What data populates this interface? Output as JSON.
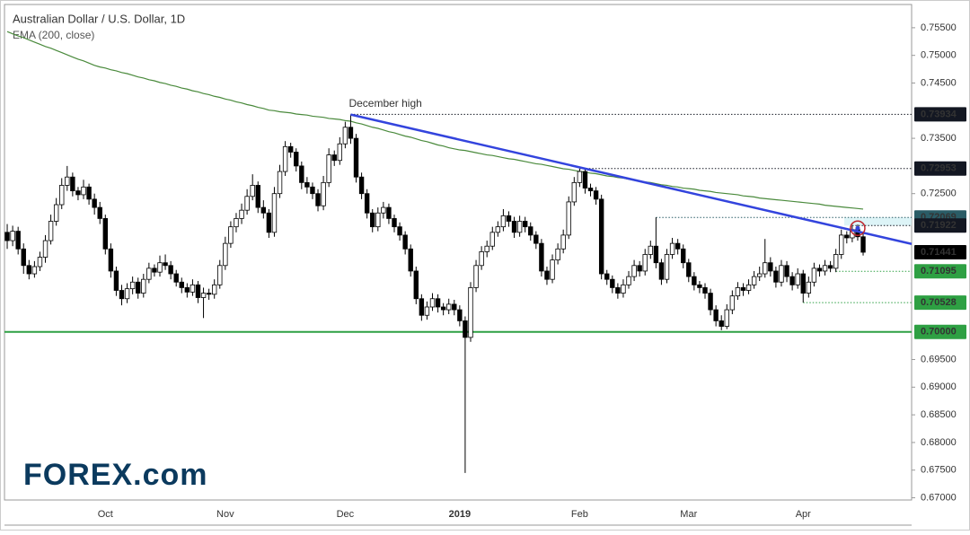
{
  "chart_data": {
    "type": "candlestick",
    "title": "Australian Dollar / U.S. Dollar, 1D",
    "subtitle": "EMA (200, close)",
    "annotation": "December high",
    "logo": "FOREX.com",
    "up_color": "#ffffff",
    "down_color": "#000000",
    "wick_color": "#000000",
    "ylim": [
      0.6696,
      0.7592
    ],
    "yticks": [
      {
        "value": 0.755,
        "label": "0.75500"
      },
      {
        "value": 0.75,
        "label": "0.75000"
      },
      {
        "value": 0.745,
        "label": "0.74500"
      },
      {
        "value": 0.735,
        "label": "0.73500"
      },
      {
        "value": 0.725,
        "label": "0.72500"
      },
      {
        "value": 0.695,
        "label": "0.69500"
      },
      {
        "value": 0.69,
        "label": "0.69000"
      },
      {
        "value": 0.685,
        "label": "0.68500"
      },
      {
        "value": 0.68,
        "label": "0.68000"
      },
      {
        "value": 0.675,
        "label": "0.67500"
      },
      {
        "value": 0.67,
        "label": "0.67000"
      }
    ],
    "categories": [
      null,
      null,
      null,
      null,
      null,
      null,
      null,
      null,
      null,
      null,
      null,
      null,
      null,
      null,
      null,
      null,
      null,
      null,
      "Oct",
      null,
      null,
      null,
      null,
      null,
      null,
      null,
      null,
      null,
      null,
      null,
      null,
      null,
      null,
      null,
      null,
      null,
      null,
      null,
      null,
      null,
      "Nov",
      null,
      null,
      null,
      null,
      null,
      null,
      null,
      null,
      null,
      null,
      null,
      null,
      null,
      null,
      null,
      null,
      null,
      null,
      null,
      null,
      null,
      "Dec",
      null,
      null,
      null,
      null,
      null,
      null,
      null,
      null,
      null,
      null,
      null,
      null,
      null,
      null,
      null,
      null,
      null,
      null,
      null,
      null,
      "2019",
      null,
      null,
      null,
      null,
      null,
      null,
      null,
      null,
      null,
      null,
      null,
      null,
      null,
      null,
      null,
      null,
      null,
      null,
      null,
      null,
      null,
      "Feb",
      null,
      null,
      null,
      null,
      null,
      null,
      null,
      null,
      null,
      null,
      null,
      null,
      null,
      null,
      null,
      null,
      null,
      null,
      null,
      "Mar",
      null,
      null,
      null,
      null,
      null,
      null,
      null,
      null,
      null,
      null,
      null,
      null,
      null,
      null,
      null,
      null,
      null,
      null,
      null,
      null,
      "Apr",
      null,
      null,
      null,
      null,
      null,
      null,
      null,
      null,
      null,
      null,
      null
    ],
    "candles": [
      [
        0.718,
        0.7195,
        0.715,
        0.7165
      ],
      [
        0.7165,
        0.7192,
        0.7155,
        0.7182
      ],
      [
        0.7182,
        0.719,
        0.714,
        0.715
      ],
      [
        0.715,
        0.716,
        0.7105,
        0.712
      ],
      [
        0.712,
        0.713,
        0.7095,
        0.7105
      ],
      [
        0.7105,
        0.7128,
        0.7098,
        0.7118
      ],
      [
        0.7118,
        0.7145,
        0.711,
        0.7135
      ],
      [
        0.7135,
        0.7175,
        0.7125,
        0.7165
      ],
      [
        0.7165,
        0.7212,
        0.7158,
        0.72
      ],
      [
        0.72,
        0.7242,
        0.7192,
        0.723
      ],
      [
        0.723,
        0.7278,
        0.7222,
        0.7265
      ],
      [
        0.7265,
        0.73,
        0.7255,
        0.728
      ],
      [
        0.728,
        0.7288,
        0.7245,
        0.7255
      ],
      [
        0.7255,
        0.7262,
        0.7238,
        0.7248
      ],
      [
        0.7248,
        0.7275,
        0.724,
        0.7262
      ],
      [
        0.7262,
        0.7268,
        0.723,
        0.724
      ],
      [
        0.724,
        0.725,
        0.7212,
        0.7225
      ],
      [
        0.7225,
        0.7235,
        0.7195,
        0.7205
      ],
      [
        0.7205,
        0.7212,
        0.714,
        0.715
      ],
      [
        0.715,
        0.716,
        0.7098,
        0.711
      ],
      [
        0.711,
        0.7118,
        0.7065,
        0.7075
      ],
      [
        0.7075,
        0.7085,
        0.7048,
        0.706
      ],
      [
        0.706,
        0.7088,
        0.7052,
        0.7078
      ],
      [
        0.7078,
        0.71,
        0.7068,
        0.709
      ],
      [
        0.709,
        0.7098,
        0.706,
        0.707
      ],
      [
        0.707,
        0.7105,
        0.7062,
        0.7095
      ],
      [
        0.7095,
        0.7125,
        0.7088,
        0.7115
      ],
      [
        0.7115,
        0.7122,
        0.71,
        0.7108
      ],
      [
        0.7108,
        0.7138,
        0.71,
        0.7125
      ],
      [
        0.7125,
        0.714,
        0.7112,
        0.712
      ],
      [
        0.712,
        0.7128,
        0.7095,
        0.7105
      ],
      [
        0.7105,
        0.7112,
        0.7082,
        0.709
      ],
      [
        0.709,
        0.7098,
        0.707,
        0.708
      ],
      [
        0.708,
        0.7088,
        0.7062,
        0.7072
      ],
      [
        0.7072,
        0.7095,
        0.7065,
        0.7085
      ],
      [
        0.7085,
        0.7092,
        0.7052,
        0.7062
      ],
      [
        0.7062,
        0.708,
        0.7025,
        0.707
      ],
      [
        0.707,
        0.7078,
        0.7058,
        0.7068
      ],
      [
        0.7068,
        0.7095,
        0.706,
        0.7085
      ],
      [
        0.7085,
        0.713,
        0.7078,
        0.712
      ],
      [
        0.712,
        0.7172,
        0.7112,
        0.716
      ],
      [
        0.716,
        0.72,
        0.7152,
        0.719
      ],
      [
        0.719,
        0.7215,
        0.718,
        0.7205
      ],
      [
        0.7205,
        0.7232,
        0.7195,
        0.722
      ],
      [
        0.722,
        0.7258,
        0.7212,
        0.7245
      ],
      [
        0.7245,
        0.7285,
        0.7238,
        0.7265
      ],
      [
        0.7265,
        0.7272,
        0.7215,
        0.7225
      ],
      [
        0.7225,
        0.7238,
        0.7205,
        0.7215
      ],
      [
        0.7215,
        0.7222,
        0.717,
        0.718
      ],
      [
        0.718,
        0.7262,
        0.7172,
        0.725
      ],
      [
        0.725,
        0.7302,
        0.7242,
        0.729
      ],
      [
        0.729,
        0.7345,
        0.7282,
        0.7335
      ],
      [
        0.7335,
        0.7342,
        0.7315,
        0.7325
      ],
      [
        0.7325,
        0.7332,
        0.729,
        0.73
      ],
      [
        0.73,
        0.7308,
        0.7258,
        0.727
      ],
      [
        0.727,
        0.728,
        0.725,
        0.7262
      ],
      [
        0.7262,
        0.727,
        0.724,
        0.725
      ],
      [
        0.725,
        0.7258,
        0.7218,
        0.7228
      ],
      [
        0.7228,
        0.7282,
        0.722,
        0.727
      ],
      [
        0.727,
        0.7332,
        0.7262,
        0.732
      ],
      [
        0.732,
        0.7328,
        0.73,
        0.731
      ],
      [
        0.731,
        0.7352,
        0.7302,
        0.734
      ],
      [
        0.734,
        0.738,
        0.7332,
        0.737
      ],
      [
        0.737,
        0.7393,
        0.734,
        0.735
      ],
      [
        0.735,
        0.7358,
        0.727,
        0.728
      ],
      [
        0.728,
        0.7288,
        0.724,
        0.725
      ],
      [
        0.725,
        0.7258,
        0.7205,
        0.7215
      ],
      [
        0.7215,
        0.7222,
        0.718,
        0.719
      ],
      [
        0.719,
        0.7225,
        0.7182,
        0.7215
      ],
      [
        0.7215,
        0.7235,
        0.7205,
        0.7225
      ],
      [
        0.7225,
        0.7232,
        0.7195,
        0.7205
      ],
      [
        0.7205,
        0.7212,
        0.718,
        0.719
      ],
      [
        0.719,
        0.7198,
        0.7165,
        0.7175
      ],
      [
        0.7175,
        0.7182,
        0.714,
        0.715
      ],
      [
        0.715,
        0.7158,
        0.71,
        0.711
      ],
      [
        0.711,
        0.7118,
        0.705,
        0.706
      ],
      [
        0.706,
        0.7068,
        0.702,
        0.703
      ],
      [
        0.703,
        0.7055,
        0.7022,
        0.7045
      ],
      [
        0.7045,
        0.707,
        0.7038,
        0.706
      ],
      [
        0.706,
        0.7068,
        0.7035,
        0.7045
      ],
      [
        0.7045,
        0.7052,
        0.703,
        0.704
      ],
      [
        0.704,
        0.706,
        0.7032,
        0.705
      ],
      [
        0.705,
        0.7058,
        0.703,
        0.704
      ],
      [
        0.704,
        0.7048,
        0.701,
        0.702
      ],
      [
        0.702,
        0.7028,
        0.6745,
        0.699
      ],
      [
        0.699,
        0.709,
        0.6982,
        0.708
      ],
      [
        0.708,
        0.713,
        0.7072,
        0.712
      ],
      [
        0.712,
        0.7155,
        0.7112,
        0.7145
      ],
      [
        0.7145,
        0.7165,
        0.7135,
        0.7155
      ],
      [
        0.7155,
        0.719,
        0.7148,
        0.718
      ],
      [
        0.718,
        0.72,
        0.7172,
        0.719
      ],
      [
        0.719,
        0.7222,
        0.7182,
        0.721
      ],
      [
        0.721,
        0.7218,
        0.719,
        0.72
      ],
      [
        0.72,
        0.7208,
        0.717,
        0.718
      ],
      [
        0.718,
        0.721,
        0.7172,
        0.72
      ],
      [
        0.72,
        0.7208,
        0.718,
        0.719
      ],
      [
        0.719,
        0.7198,
        0.7165,
        0.7175
      ],
      [
        0.7175,
        0.7182,
        0.715,
        0.716
      ],
      [
        0.716,
        0.7168,
        0.71,
        0.711
      ],
      [
        0.711,
        0.7118,
        0.7085,
        0.7095
      ],
      [
        0.7095,
        0.714,
        0.7088,
        0.713
      ],
      [
        0.713,
        0.716,
        0.7122,
        0.715
      ],
      [
        0.715,
        0.7185,
        0.7142,
        0.7175
      ],
      [
        0.7175,
        0.7245,
        0.7168,
        0.7235
      ],
      [
        0.7235,
        0.728,
        0.7228,
        0.727
      ],
      [
        0.727,
        0.7295,
        0.7262,
        0.729
      ],
      [
        0.729,
        0.7295,
        0.725,
        0.726
      ],
      [
        0.726,
        0.7268,
        0.7245,
        0.7255
      ],
      [
        0.7255,
        0.7262,
        0.723,
        0.724
      ],
      [
        0.724,
        0.7248,
        0.7095,
        0.7105
      ],
      [
        0.7105,
        0.7112,
        0.7085,
        0.7095
      ],
      [
        0.7095,
        0.7102,
        0.707,
        0.708
      ],
      [
        0.708,
        0.7088,
        0.706,
        0.707
      ],
      [
        0.707,
        0.7095,
        0.7062,
        0.7085
      ],
      [
        0.7085,
        0.711,
        0.7078,
        0.71
      ],
      [
        0.71,
        0.713,
        0.7092,
        0.712
      ],
      [
        0.712,
        0.7128,
        0.71,
        0.711
      ],
      [
        0.711,
        0.715,
        0.7102,
        0.714
      ],
      [
        0.714,
        0.7165,
        0.7132,
        0.7155
      ],
      [
        0.7155,
        0.7207,
        0.7115,
        0.7125
      ],
      [
        0.7125,
        0.7132,
        0.7085,
        0.7095
      ],
      [
        0.7095,
        0.715,
        0.7088,
        0.714
      ],
      [
        0.714,
        0.717,
        0.7132,
        0.716
      ],
      [
        0.716,
        0.7168,
        0.714,
        0.715
      ],
      [
        0.715,
        0.7158,
        0.7115,
        0.7125
      ],
      [
        0.7125,
        0.7132,
        0.709,
        0.71
      ],
      [
        0.71,
        0.7108,
        0.7075,
        0.7085
      ],
      [
        0.7085,
        0.7092,
        0.707,
        0.708
      ],
      [
        0.708,
        0.7088,
        0.706,
        0.707
      ],
      [
        0.707,
        0.7078,
        0.703,
        0.704
      ],
      [
        0.704,
        0.7048,
        0.701,
        0.702
      ],
      [
        0.702,
        0.703,
        0.7003,
        0.701
      ],
      [
        0.701,
        0.705,
        0.7005,
        0.704
      ],
      [
        0.704,
        0.7075,
        0.7032,
        0.7065
      ],
      [
        0.7065,
        0.709,
        0.7058,
        0.708
      ],
      [
        0.708,
        0.7088,
        0.7065,
        0.7075
      ],
      [
        0.7075,
        0.7095,
        0.7068,
        0.7085
      ],
      [
        0.7085,
        0.711,
        0.7078,
        0.71
      ],
      [
        0.71,
        0.7118,
        0.7092,
        0.7105
      ],
      [
        0.7105,
        0.7168,
        0.7098,
        0.7125
      ],
      [
        0.7125,
        0.7135,
        0.71,
        0.711
      ],
      [
        0.711,
        0.7118,
        0.708,
        0.709
      ],
      [
        0.709,
        0.713,
        0.7082,
        0.712
      ],
      [
        0.712,
        0.7128,
        0.709,
        0.71
      ],
      [
        0.71,
        0.7108,
        0.7075,
        0.7085
      ],
      [
        0.7085,
        0.7115,
        0.7078,
        0.7105
      ],
      [
        0.7105,
        0.7112,
        0.7053,
        0.707
      ],
      [
        0.707,
        0.71,
        0.7062,
        0.709
      ],
      [
        0.709,
        0.7125,
        0.7082,
        0.7115
      ],
      [
        0.7115,
        0.7122,
        0.71,
        0.711
      ],
      [
        0.711,
        0.713,
        0.7102,
        0.712
      ],
      [
        0.712,
        0.7128,
        0.7108,
        0.7115
      ],
      [
        0.7115,
        0.715,
        0.7108,
        0.714
      ],
      [
        0.714,
        0.7185,
        0.7132,
        0.7175
      ],
      [
        0.7175,
        0.7182,
        0.716,
        0.717
      ],
      [
        0.717,
        0.7192,
        0.7162,
        0.7185
      ],
      [
        0.7185,
        0.7194,
        0.7165,
        0.7172
      ],
      [
        0.7172,
        0.718,
        0.7138,
        0.7144
      ]
    ],
    "ema": {
      "color": "#4a8a3c",
      "values": [
        0.7543,
        0.7539,
        0.7535,
        0.7532,
        0.7528,
        0.7524,
        0.752,
        0.7516,
        0.7513,
        0.7509,
        0.7505,
        0.7501,
        0.7497,
        0.7493,
        0.749,
        0.7486,
        0.7482,
        0.7479,
        0.7477,
        0.7474,
        0.7472,
        0.7469,
        0.7467,
        0.7464,
        0.7461,
        0.7459,
        0.7456,
        0.7454,
        0.7451,
        0.7449,
        0.7446,
        0.7444,
        0.7441,
        0.7439,
        0.7436,
        0.7434,
        0.7431,
        0.7429,
        0.7426,
        0.7424,
        0.7421,
        0.7419,
        0.7416,
        0.7414,
        0.7411,
        0.7409,
        0.7406,
        0.7404,
        0.7401,
        0.74,
        0.7398,
        0.7397,
        0.7396,
        0.7394,
        0.7393,
        0.7392,
        0.739,
        0.7389,
        0.7388,
        0.7386,
        0.7385,
        0.7384,
        0.7382,
        0.7381,
        0.7378,
        0.7376,
        0.7373,
        0.737,
        0.7368,
        0.7365,
        0.7362,
        0.736,
        0.7357,
        0.7354,
        0.7352,
        0.7349,
        0.7346,
        0.7344,
        0.7341,
        0.7338,
        0.7336,
        0.7333,
        0.7331,
        0.7329,
        0.7328,
        0.7326,
        0.7324,
        0.7322,
        0.732,
        0.7319,
        0.7317,
        0.7315,
        0.7313,
        0.7312,
        0.731,
        0.7308,
        0.7306,
        0.7304,
        0.7303,
        0.7301,
        0.7299,
        0.7297,
        0.7295,
        0.7294,
        0.7292,
        0.729,
        0.7289,
        0.7287,
        0.7286,
        0.7284,
        0.7282,
        0.7281,
        0.7279,
        0.7278,
        0.7276,
        0.7274,
        0.7273,
        0.7271,
        0.727,
        0.7268,
        0.7266,
        0.7265,
        0.7263,
        0.7262,
        0.726,
        0.7259,
        0.7258,
        0.7256,
        0.7255,
        0.7254,
        0.7252,
        0.7251,
        0.725,
        0.7249,
        0.7248,
        0.7246,
        0.7245,
        0.7244,
        0.7242,
        0.7241,
        0.724,
        0.7239,
        0.7238,
        0.7237,
        0.7236,
        0.7235,
        0.7234,
        0.7233,
        0.7232,
        0.7231,
        0.7229,
        0.7228,
        0.7227,
        0.7226,
        0.7225,
        0.7224,
        0.7223,
        0.7222
      ]
    },
    "trendline": {
      "color": "#3344dd",
      "values": [
        0.7393,
        0.7159
      ]
    },
    "levels": [
      {
        "value": 0.73934,
        "color": "#131722",
        "style": "dotted"
      },
      {
        "value": 0.72953,
        "color": "#131722",
        "style": "dotted"
      },
      {
        "value": 0.72069,
        "color": "#2a5c66",
        "style": "dotted"
      },
      {
        "value": 0.71922,
        "color": "#131722",
        "style": "dotted"
      },
      {
        "value": 0.71441,
        "color": "#000000"
      },
      {
        "value": 0.71095,
        "color": "#2ea043",
        "style": "dotted"
      },
      {
        "value": 0.70528,
        "color": "#2ea043",
        "style": "dotted"
      },
      {
        "value": 0.7,
        "label": "0.70000",
        "color": "#2ea043",
        "style": "solid"
      }
    ]
  }
}
